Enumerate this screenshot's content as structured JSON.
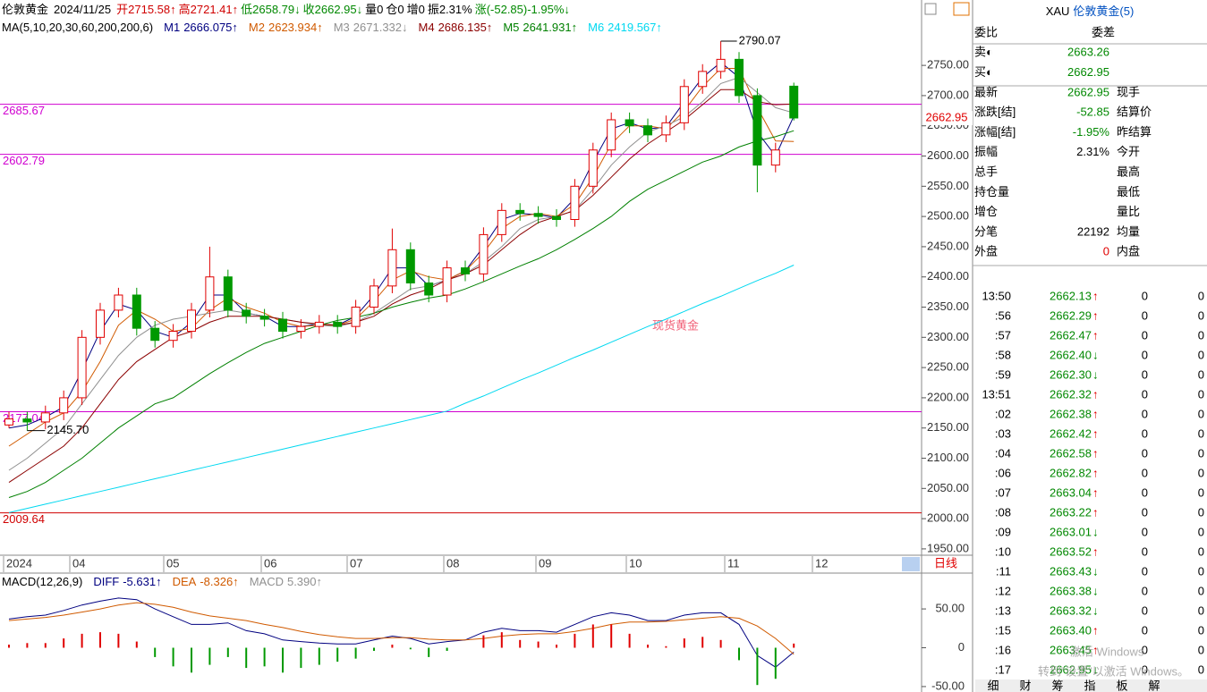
{
  "header": {
    "name": "伦敦黄金",
    "date": "2024/11/25",
    "items": [
      {
        "text": "开2715.58↑",
        "color": "#d00000"
      },
      {
        "text": "高2721.41↑",
        "color": "#d00000"
      },
      {
        "text": "低2658.79↓",
        "color": "#008800"
      },
      {
        "text": "收2662.95↓",
        "color": "#008800"
      },
      {
        "text": "量0",
        "color": "#000000"
      },
      {
        "text": "仓0",
        "color": "#000000"
      },
      {
        "text": "增0",
        "color": "#000000"
      },
      {
        "text": "振2.31%",
        "color": "#000000"
      },
      {
        "text": "涨(-52.85)-1.95%↓",
        "color": "#008800"
      }
    ]
  },
  "price_chart": {
    "type": "candlestick",
    "ma_label": "MA(5,10,20,30,60,200,200,6)",
    "categories": [
      null,
      null,
      null,
      null,
      null,
      null,
      null,
      null,
      null,
      null,
      null,
      null,
      null,
      null,
      null,
      null,
      null,
      null,
      null,
      null,
      null,
      null,
      null,
      null,
      null,
      null,
      null,
      null,
      null,
      null,
      null,
      null,
      null,
      null,
      null,
      null,
      null,
      null,
      null,
      null,
      null,
      null,
      null,
      null
    ],
    "open": [
      2155,
      2165,
      2160,
      2175,
      2200,
      2300,
      2345,
      2370,
      2315,
      2295,
      2310,
      2345,
      2400,
      2345,
      2335,
      2330,
      2310,
      2318,
      2325,
      2318,
      2350,
      2385,
      2445,
      2390,
      2370,
      2415,
      2405,
      2470,
      2510,
      2505,
      2500,
      2495,
      2550,
      2610,
      2660,
      2650,
      2635,
      2655,
      2715,
      2740,
      2760,
      2700,
      2585,
      2715.58
    ],
    "high": [
      2177,
      2177,
      2187,
      2212,
      2312,
      2357,
      2382,
      2382,
      2327,
      2322,
      2357,
      2450,
      2412,
      2357,
      2347,
      2342,
      2330,
      2337,
      2337,
      2362,
      2397,
      2480,
      2457,
      2402,
      2427,
      2427,
      2482,
      2522,
      2522,
      2517,
      2512,
      2562,
      2622,
      2672,
      2672,
      2662,
      2667,
      2727,
      2752,
      2790.07,
      2772,
      2712,
      2622,
      2721.41
    ],
    "low": [
      2150,
      2145.7,
      2148,
      2163,
      2188,
      2288,
      2333,
      2303,
      2283,
      2283,
      2298,
      2333,
      2333,
      2323,
      2318,
      2298,
      2298,
      2306,
      2306,
      2306,
      2338,
      2373,
      2378,
      2358,
      2358,
      2393,
      2393,
      2458,
      2493,
      2488,
      2483,
      2483,
      2538,
      2598,
      2638,
      2623,
      2623,
      2643,
      2703,
      2728,
      2688,
      2540,
      2573,
      2658.79
    ],
    "close": [
      2165,
      2160,
      2175,
      2200,
      2300,
      2345,
      2370,
      2315,
      2295,
      2310,
      2345,
      2400,
      2345,
      2335,
      2330,
      2310,
      2318,
      2325,
      2318,
      2350,
      2385,
      2445,
      2390,
      2370,
      2415,
      2405,
      2470,
      2510,
      2505,
      2500,
      2495,
      2550,
      2610,
      2660,
      2650,
      2635,
      2655,
      2715,
      2740,
      2760,
      2700,
      2585,
      2610,
      2662.95
    ],
    "up_color": "#e00000",
    "down_color": "#009900",
    "series": [
      {
        "name": "M1",
        "color": "#000080",
        "legend_value": "2666.075↑",
        "values": [
          2150,
          2155,
          2168,
          2185,
          2245,
          2310,
          2355,
          2345,
          2310,
          2300,
          2325,
          2370,
          2370,
          2340,
          2335,
          2318,
          2318,
          2322,
          2320,
          2335,
          2370,
          2415,
          2415,
          2385,
          2395,
          2410,
          2450,
          2495,
          2505,
          2503,
          2498,
          2530,
          2590,
          2645,
          2655,
          2645,
          2648,
          2690,
          2730,
          2755,
          2730,
          2640,
          2600,
          2666.075
        ]
      },
      {
        "name": "M2",
        "color": "#d05a00",
        "legend_value": "2623.934↑",
        "values": [
          2120,
          2140,
          2160,
          2175,
          2210,
          2260,
          2320,
          2345,
          2330,
          2310,
          2315,
          2345,
          2365,
          2350,
          2340,
          2325,
          2318,
          2320,
          2320,
          2330,
          2360,
          2395,
          2410,
          2400,
          2395,
          2410,
          2440,
          2480,
          2500,
          2505,
          2500,
          2520,
          2565,
          2620,
          2650,
          2650,
          2645,
          2675,
          2715,
          2745,
          2745,
          2680,
          2625,
          2623.934
        ]
      },
      {
        "name": "M3",
        "color": "#909090",
        "legend_value": "2671.332↓",
        "values": [
          2080,
          2100,
          2125,
          2150,
          2190,
          2230,
          2270,
          2300,
          2320,
          2330,
          2335,
          2340,
          2345,
          2340,
          2335,
          2330,
          2325,
          2320,
          2318,
          2325,
          2340,
          2360,
          2380,
          2385,
          2395,
          2405,
          2425,
          2450,
          2480,
          2495,
          2500,
          2510,
          2545,
          2585,
          2615,
          2640,
          2650,
          2665,
          2690,
          2720,
          2730,
          2705,
          2680,
          2671.332
        ]
      },
      {
        "name": "M4",
        "color": "#8b0000",
        "legend_value": "2686.135↑",
        "values": [
          2060,
          2080,
          2100,
          2120,
          2150,
          2190,
          2230,
          2260,
          2280,
          2300,
          2310,
          2325,
          2335,
          2335,
          2335,
          2330,
          2325,
          2322,
          2320,
          2325,
          2335,
          2355,
          2370,
          2380,
          2395,
          2405,
          2420,
          2445,
          2470,
          2490,
          2500,
          2510,
          2535,
          2565,
          2595,
          2620,
          2640,
          2660,
          2685,
          2710,
          2710,
          2690,
          2685,
          2686.135
        ]
      },
      {
        "name": "M5",
        "color": "#008000",
        "legend_value": "2641.931↑",
        "values": [
          2035,
          2045,
          2060,
          2080,
          2100,
          2125,
          2150,
          2170,
          2190,
          2200,
          2220,
          2240,
          2258,
          2275,
          2290,
          2300,
          2310,
          2320,
          2328,
          2333,
          2340,
          2350,
          2358,
          2365,
          2370,
          2380,
          2392,
          2405,
          2418,
          2430,
          2445,
          2462,
          2480,
          2500,
          2525,
          2545,
          2560,
          2575,
          2590,
          2600,
          2615,
          2625,
          2632,
          2641.931
        ]
      },
      {
        "name": "M6",
        "color": "#00d8f0",
        "legend_value": "2419.567↑",
        "values": [
          2010,
          2017,
          2024,
          2031,
          2038,
          2045,
          2052,
          2059,
          2066,
          2073,
          2080,
          2087,
          2094,
          2101,
          2108,
          2115,
          2122,
          2129,
          2136,
          2143,
          2150,
          2157,
          2164,
          2171,
          2178,
          2191,
          2203,
          2216,
          2229,
          2241,
          2254,
          2267,
          2279,
          2292,
          2305,
          2318,
          2330,
          2343,
          2356,
          2368,
          2381,
          2394,
          2406,
          2419.567
        ]
      }
    ],
    "ylim": [
      1941,
      2799
    ],
    "yticks": [
      {
        "value": 1950,
        "label": "1950.00"
      },
      {
        "value": 2000,
        "label": "2000.00"
      },
      {
        "value": 2050,
        "label": "2050.00"
      },
      {
        "value": 2100,
        "label": "2100.00"
      },
      {
        "value": 2150,
        "label": "2150.00"
      },
      {
        "value": 2200,
        "label": "2200.00"
      },
      {
        "value": 2250,
        "label": "2250.00"
      },
      {
        "value": 2300,
        "label": "2300.00"
      },
      {
        "value": 2350,
        "label": "2350.00"
      },
      {
        "value": 2400,
        "label": "2400.00"
      },
      {
        "value": 2450,
        "label": "2450.00"
      },
      {
        "value": 2500,
        "label": "2500.00"
      },
      {
        "value": 2550,
        "label": "2550.00"
      },
      {
        "value": 2600,
        "label": "2600.00"
      },
      {
        "value": 2650,
        "label": "2650.00"
      },
      {
        "value": 2700,
        "label": "2700.00"
      },
      {
        "value": 2750,
        "label": "2750.00"
      }
    ],
    "hlines": [
      {
        "value": 2685.67,
        "color": "#d000d0"
      },
      {
        "value": 2602.79,
        "color": "#d000d0"
      },
      {
        "value": 2177.04,
        "color": "#d000d0"
      },
      {
        "value": 2009.64,
        "color": "#d00000"
      }
    ],
    "high_label": {
      "value": 2790.07,
      "label": "2790.07"
    },
    "low_label": {
      "value": 2145.7,
      "label": "2145.70"
    },
    "watermark": "现货黄金",
    "month_labels": [
      "2024",
      "04",
      "05",
      "06",
      "07",
      "08",
      "09",
      "10",
      "11",
      "12"
    ],
    "period": "日线"
  },
  "macd_chart": {
    "type": "macd",
    "label": "MACD(12,26,9)",
    "series": [
      {
        "name": "DIFF",
        "color": "#000080",
        "legend_value": "-5.631↑",
        "values": [
          37,
          40,
          42,
          48,
          55,
          60,
          64,
          62,
          50,
          40,
          30,
          30,
          32,
          22,
          18,
          10,
          8,
          6,
          5,
          5,
          10,
          15,
          12,
          5,
          8,
          10,
          20,
          25,
          22,
          22,
          20,
          30,
          40,
          45,
          42,
          35,
          35,
          42,
          45,
          45,
          30,
          -10,
          -25,
          -5.631
        ]
      },
      {
        "name": "DEA",
        "color": "#d05a00",
        "legend_value": "-8.326↑",
        "values": [
          35,
          37,
          39,
          42,
          46,
          50,
          55,
          58,
          56,
          52,
          46,
          41,
          38,
          35,
          30,
          26,
          21,
          17,
          14,
          12,
          12,
          13,
          13,
          11,
          10,
          10,
          12,
          15,
          17,
          18,
          18,
          21,
          25,
          30,
          33,
          33,
          34,
          36,
          38,
          40,
          38,
          28,
          12,
          -8.326
        ]
      },
      {
        "name": "MACD",
        "color": "#909090",
        "legend_value": "5.390↑",
        "values": [
          4,
          6,
          6,
          12,
          18,
          20,
          18,
          8,
          -12,
          -24,
          -32,
          -22,
          -12,
          -26,
          -24,
          -32,
          -26,
          -22,
          -18,
          -14,
          -4,
          4,
          -2,
          -12,
          -4,
          0,
          16,
          20,
          10,
          8,
          4,
          18,
          30,
          30,
          18,
          4,
          2,
          12,
          14,
          10,
          -16,
          -48,
          -40,
          5.39
        ]
      }
    ],
    "up_color": "#e00000",
    "down_color": "#009900",
    "ylim": [
      -57,
      95
    ],
    "yticks": [
      {
        "value": 50,
        "label": "50.00"
      },
      0,
      {
        "value": -50,
        "label": "-50.00"
      }
    ]
  },
  "quote": {
    "code": "XAU",
    "name": "伦敦黄金(5)",
    "rows": [
      {
        "label": "委比",
        "label2": "委差"
      },
      {
        "label": "卖◐",
        "value": "2663.26",
        "color": "#008800"
      },
      {
        "label": "买◐",
        "value": "2662.95",
        "color": "#008800"
      },
      {
        "label": "最新",
        "value": "2662.95",
        "color": "#008800",
        "label2": "现手"
      },
      {
        "label": "涨跌[结]",
        "value": "-52.85",
        "color": "#008800",
        "label2": "结算价"
      },
      {
        "label": "涨幅[结]",
        "value": "-1.95%",
        "color": "#008800",
        "label2": "昨结算"
      },
      {
        "label": "振幅",
        "value": "2.31%",
        "color": "#000000",
        "label2": "今开"
      },
      {
        "label": "总手",
        "label2": "最高"
      },
      {
        "label": "持仓量",
        "label2": "最低"
      },
      {
        "label": "增仓",
        "label2": "量比"
      },
      {
        "label": "分笔",
        "value": "22192",
        "color": "#000000",
        "label2": "均量"
      },
      {
        "label": "外盘",
        "value": "0",
        "color": "#e00000",
        "label2": "内盘"
      }
    ],
    "ticks": [
      [
        "13:50",
        "2662.13",
        "↑",
        "0",
        "0"
      ],
      [
        ":56",
        "2662.29",
        "↑",
        "0",
        "0"
      ],
      [
        ":57",
        "2662.47",
        "↑",
        "0",
        "0"
      ],
      [
        ":58",
        "2662.40",
        "↓",
        "0",
        "0"
      ],
      [
        ":59",
        "2662.30",
        "↓",
        "0",
        "0"
      ],
      [
        "13:51",
        "2662.32",
        "↑",
        "0",
        "0"
      ],
      [
        ":02",
        "2662.38",
        "↑",
        "0",
        "0"
      ],
      [
        ":03",
        "2662.42",
        "↑",
        "0",
        "0"
      ],
      [
        ":04",
        "2662.58",
        "↑",
        "0",
        "0"
      ],
      [
        ":06",
        "2662.82",
        "↑",
        "0",
        "0"
      ],
      [
        ":07",
        "2663.04",
        "↑",
        "0",
        "0"
      ],
      [
        ":08",
        "2663.22",
        "↑",
        "0",
        "0"
      ],
      [
        ":09",
        "2663.01",
        "↓",
        "0",
        "0"
      ],
      [
        ":10",
        "2663.52",
        "↑",
        "0",
        "0"
      ],
      [
        ":11",
        "2663.43",
        "↓",
        "0",
        "0"
      ],
      [
        ":12",
        "2663.38",
        "↓",
        "0",
        "0"
      ],
      [
        ":13",
        "2663.32",
        "↓",
        "0",
        "0"
      ],
      [
        ":15",
        "2663.40",
        "↑",
        "0",
        "0"
      ],
      [
        ":16",
        "2663.45",
        "↑",
        "0",
        "0"
      ],
      [
        ":17",
        "2662.95",
        "↓",
        "0",
        "0"
      ]
    ],
    "tabs": [
      "细",
      "财",
      "筹",
      "指",
      "板",
      "解"
    ]
  },
  "os_notice": {
    "line1": "激活 Windows",
    "line2": "转到“设置”以激活 Windows。"
  }
}
